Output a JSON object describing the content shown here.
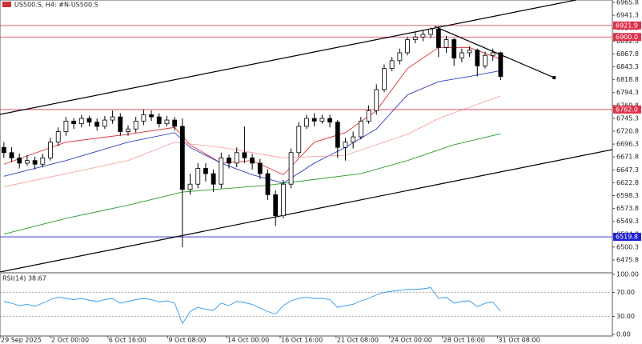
{
  "chart_data": [
    {
      "type": "candlestick",
      "title": "US500.S, H4: #N-US500.S",
      "xlim": [
        -0.5,
        78.4
      ],
      "ylim": [
        6452.9,
        6970.4
      ],
      "yticks": [
        6965.8,
        6941.3,
        6916.8,
        6892.3,
        6867.8,
        6843.3,
        6818.8,
        6794.3,
        6769.8,
        6745.3,
        6720.8,
        6696.3,
        6671.8,
        6647.3,
        6622.8,
        6598.3,
        6573.8,
        6549.3,
        6524.8,
        6500.3,
        6475.8
      ],
      "xticks": [
        {
          "value": -0.5,
          "label": "29 Sep 2025"
        },
        {
          "value": 6.0,
          "label": "2 Oct 00:00"
        },
        {
          "value": 13.4,
          "label": "6 Oct 16:00"
        },
        {
          "value": 21.1,
          "label": "9 Oct 08:00"
        },
        {
          "value": 28.7,
          "label": "14 Oct 00:00"
        },
        {
          "value": 35.6,
          "label": "16 Oct 16:00"
        },
        {
          "value": 42.8,
          "label": "21 Oct 08:00"
        },
        {
          "value": 49.7,
          "label": "24 Oct 00:00"
        },
        {
          "value": 56.5,
          "label": "28 Oct 16:00"
        },
        {
          "value": 63.6,
          "label": "31 Oct 08:00"
        }
      ],
      "color_up": "#ffffff",
      "color_down": "#000000",
      "open": [
        6690,
        6680,
        6670,
        6660,
        6665,
        6658,
        6670,
        6700,
        6720,
        6740,
        6735,
        6745,
        6738,
        6730,
        6742,
        6748,
        6720,
        6725,
        6740,
        6752,
        6748,
        6735,
        6742,
        6730,
        6610,
        6620,
        6650,
        6640,
        6620,
        6670,
        6660,
        6680,
        6670,
        6660,
        6640,
        6600,
        6560,
        6620,
        6680,
        6730,
        6745,
        6740,
        6745,
        6738,
        6690,
        6700,
        6710,
        6740,
        6760,
        6800,
        6840,
        6855,
        6870,
        6895,
        6900,
        6905,
        6915,
        6880,
        6895,
        6860,
        6870,
        6875,
        6845,
        6865,
        6870
      ],
      "high": [
        6700,
        6690,
        6678,
        6675,
        6672,
        6678,
        6708,
        6728,
        6748,
        6746,
        6752,
        6750,
        6745,
        6750,
        6760,
        6755,
        6732,
        6748,
        6762,
        6760,
        6755,
        6750,
        6748,
        6745,
        6640,
        6660,
        6660,
        6648,
        6680,
        6676,
        6690,
        6730,
        6678,
        6668,
        6648,
        6608,
        6628,
        6688,
        6738,
        6752,
        6755,
        6752,
        6752,
        6742,
        6708,
        6720,
        6748,
        6770,
        6810,
        6848,
        6862,
        6878,
        6900,
        6910,
        6912,
        6918,
        6921,
        6902,
        6898,
        6878,
        6882,
        6878,
        6872,
        6878,
        6872
      ],
      "low": [
        6670,
        6662,
        6650,
        6655,
        6648,
        6652,
        6665,
        6692,
        6712,
        6725,
        6728,
        6730,
        6722,
        6725,
        6735,
        6712,
        6712,
        6718,
        6732,
        6740,
        6728,
        6730,
        6722,
        6500,
        6600,
        6612,
        6625,
        6605,
        6612,
        6650,
        6652,
        6660,
        6648,
        6630,
        6590,
        6540,
        6555,
        6612,
        6672,
        6725,
        6730,
        6735,
        6728,
        6670,
        6665,
        6688,
        6705,
        6735,
        6752,
        6795,
        6835,
        6848,
        6865,
        6888,
        6892,
        6898,
        6862,
        6870,
        6845,
        6852,
        6862,
        6825,
        6840,
        6855,
        6818
      ],
      "close": [
        6680,
        6670,
        6660,
        6665,
        6658,
        6670,
        6700,
        6720,
        6740,
        6735,
        6745,
        6738,
        6730,
        6742,
        6748,
        6720,
        6725,
        6740,
        6752,
        6748,
        6735,
        6742,
        6730,
        6610,
        6620,
        6650,
        6640,
        6620,
        6670,
        6660,
        6680,
        6670,
        6660,
        6640,
        6600,
        6560,
        6620,
        6680,
        6730,
        6745,
        6740,
        6745,
        6738,
        6690,
        6700,
        6710,
        6740,
        6760,
        6800,
        6840,
        6855,
        6870,
        6895,
        6900,
        6905,
        6915,
        6880,
        6895,
        6860,
        6870,
        6875,
        6845,
        6865,
        6870,
        6825
      ],
      "series": [
        {
          "color": "#e03030",
          "x": [
            0,
            8,
            16,
            22,
            24,
            28,
            32,
            36,
            40,
            44,
            48,
            52,
            56,
            60,
            64
          ],
          "values": [
            6658,
            6700,
            6715,
            6728,
            6695,
            6660,
            6665,
            6638,
            6700,
            6718,
            6760,
            6840,
            6880,
            6880,
            6858
          ]
        },
        {
          "color": "#3040c0",
          "x": [
            0,
            8,
            16,
            22,
            24,
            28,
            32,
            36,
            40,
            44,
            48,
            52,
            56,
            60,
            64
          ],
          "values": [
            6635,
            6665,
            6700,
            6718,
            6690,
            6660,
            6638,
            6622,
            6660,
            6690,
            6725,
            6790,
            6815,
            6825,
            6836
          ]
        },
        {
          "color": "#f4a6a0",
          "x": [
            0,
            8,
            16,
            22,
            28,
            36,
            44,
            52,
            56,
            64
          ],
          "values": [
            6615,
            6640,
            6665,
            6700,
            6690,
            6670,
            6675,
            6715,
            6745,
            6788
          ]
        },
        {
          "color": "#2a9a2a",
          "x": [
            0,
            8,
            16,
            23,
            34,
            46,
            52,
            58,
            64
          ],
          "values": [
            6525,
            6555,
            6580,
            6605,
            6618,
            6640,
            6665,
            6695,
            6716
          ]
        }
      ],
      "levels": [
        {
          "value": 6921.9,
          "label": "6921.9",
          "color": "#e0304a"
        },
        {
          "value": 6900,
          "label": "6900.0",
          "color": "#e0304a"
        },
        {
          "value": 6762,
          "label": "6762.0",
          "color": "#e0304a"
        },
        {
          "value": 6519.8,
          "label": "6519.8",
          "color": "#2020d0"
        }
      ],
      "trendlines": [
        {
          "color": "#000000",
          "x": [
            -0.5,
            73.7
          ],
          "values": [
            6752.7,
            6970.4
          ]
        },
        {
          "color": "#000000",
          "x": [
            -0.5,
            78.4
          ],
          "values": [
            6452.9,
            6685.8
          ]
        },
        {
          "color": "#000000",
          "x": [
            55.5,
            70.9
          ],
          "values": [
            6920.1,
            6822.7
          ]
        }
      ]
    },
    {
      "type": "line",
      "title": "RSI(14) 38.67",
      "color": "#3399ee",
      "ylim": [
        0,
        100
      ],
      "yticks": [
        {
          "value": 100,
          "label": "100.00"
        },
        {
          "value": 70,
          "label": "70.00"
        },
        {
          "value": 30,
          "label": "30.00"
        },
        {
          "value": 0,
          "label": "0.00"
        }
      ],
      "dashed_levels": [
        70,
        30
      ],
      "values": [
        55,
        52,
        48,
        50,
        47,
        52,
        58,
        62,
        60,
        58,
        60,
        57,
        55,
        58,
        60,
        52,
        55,
        58,
        60,
        58,
        54,
        56,
        52,
        18,
        38,
        45,
        42,
        40,
        52,
        48,
        55,
        53,
        50,
        44,
        38,
        34,
        48,
        56,
        60,
        62,
        60,
        60,
        58,
        45,
        48,
        50,
        56,
        60,
        66,
        70,
        72,
        73,
        75,
        75,
        76,
        78,
        60,
        62,
        52,
        55,
        56,
        46,
        52,
        54,
        38.67
      ]
    }
  ]
}
